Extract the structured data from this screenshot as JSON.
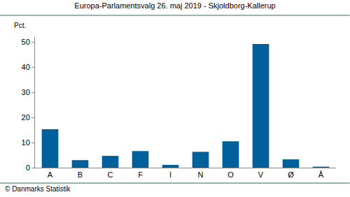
{
  "chart_data": {
    "type": "bar",
    "title": "Europa-Parlamentsvalg 26. maj 2019 - Skjoldborg-Kallerup",
    "y_label": "Pct.",
    "source": "© Danmarks Statistik",
    "categories": [
      "A",
      "B",
      "C",
      "F",
      "I",
      "N",
      "O",
      "V",
      "Ø",
      "Å"
    ],
    "values": [
      15.3,
      3.0,
      4.7,
      6.6,
      1.1,
      6.3,
      10.5,
      49.2,
      3.3,
      0.4
    ],
    "color": "#00609c",
    "ylim": [
      0,
      52
    ],
    "yticks": [
      0,
      10,
      20,
      30,
      40,
      50
    ],
    "grid": false
  }
}
